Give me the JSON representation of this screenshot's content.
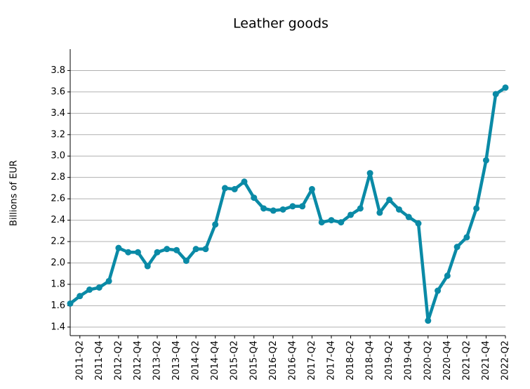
{
  "chart_data": {
    "type": "line",
    "title": "Leather goods",
    "y_label": "Billions of EUR",
    "categories": [
      null,
      "2011-Q2",
      null,
      "2011-Q4",
      null,
      "2012-Q2",
      null,
      "2012-Q4",
      null,
      "2013-Q2",
      null,
      "2013-Q4",
      null,
      "2014-Q2",
      null,
      "2014-Q4",
      null,
      "2015-Q2",
      null,
      "2015-Q4",
      null,
      "2016-Q2",
      null,
      "2016-Q4",
      null,
      "2017-Q2",
      null,
      "2017-Q4",
      null,
      "2018-Q2",
      null,
      "2018-Q4",
      null,
      "2019-Q2",
      null,
      "2019-Q4",
      null,
      "2020-Q2",
      null,
      "2020-Q4",
      null,
      "2021-Q2",
      null,
      "2021-Q4",
      null,
      "2022-Q2"
    ],
    "series": [
      {
        "name": "Leather goods",
        "color": "#0a8aa6",
        "values": [
          1.62,
          1.69,
          1.75,
          1.77,
          1.83,
          2.14,
          2.1,
          2.1,
          1.97,
          2.1,
          2.13,
          2.12,
          2.02,
          2.13,
          2.13,
          2.36,
          2.7,
          2.69,
          2.76,
          2.61,
          2.51,
          2.49,
          2.5,
          2.53,
          2.53,
          2.69,
          2.38,
          2.4,
          2.38,
          2.45,
          2.51,
          2.84,
          2.47,
          2.59,
          2.5,
          2.43,
          2.37,
          1.46,
          1.74,
          1.88,
          2.15,
          2.24,
          2.51,
          2.96,
          3.58,
          3.64
        ]
      }
    ],
    "ylim": [
      1.32,
      4.0
    ],
    "yticks": [
      {
        "value": 1.4,
        "label": "1.4"
      },
      {
        "value": 1.6,
        "label": "1.6"
      },
      {
        "value": 1.8,
        "label": "1.8"
      },
      {
        "value": 2.0,
        "label": "2.0"
      },
      {
        "value": 2.2,
        "label": "2.2"
      },
      {
        "value": 2.4,
        "label": "2.4"
      },
      {
        "value": 2.6,
        "label": "2.6"
      },
      {
        "value": 2.8,
        "label": "2.8"
      },
      {
        "value": 3.0,
        "label": "3.0"
      },
      {
        "value": 3.2,
        "label": "3.2"
      },
      {
        "value": 3.4,
        "label": "3.4"
      },
      {
        "value": 3.6,
        "label": "3.6"
      },
      {
        "value": 3.8,
        "label": "3.8"
      }
    ],
    "grid": true
  }
}
